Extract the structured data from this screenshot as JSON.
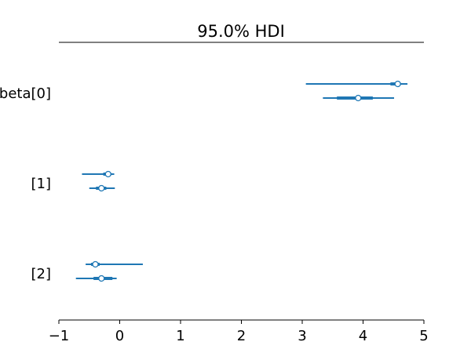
{
  "chart_data": {
    "type": "forest",
    "title": "95.0% HDI",
    "xlim": [
      -1,
      5
    ],
    "x_ticks": [
      -1,
      0,
      1,
      2,
      3,
      4,
      5
    ],
    "x_tick_labels": [
      "−1",
      "0",
      "1",
      "2",
      "3",
      "4",
      "5"
    ],
    "y_labels": [
      "beta[0]",
      "[1]",
      "[2]"
    ],
    "grid": false,
    "line_color": "#1f77b4",
    "series": [
      {
        "group": 0,
        "median": 4.57,
        "hdi_low": 3.06,
        "hdi_high": 4.73,
        "iqr_low": 4.45,
        "iqr_high": 4.62
      },
      {
        "group": 0,
        "median": 3.92,
        "hdi_low": 3.34,
        "hdi_high": 4.51,
        "iqr_low": 3.57,
        "iqr_high": 4.16
      },
      {
        "group": 1,
        "median": -0.19,
        "hdi_low": -0.62,
        "hdi_high": -0.09,
        "iqr_low": -0.27,
        "iqr_high": -0.14
      },
      {
        "group": 1,
        "median": -0.3,
        "hdi_low": -0.5,
        "hdi_high": -0.08,
        "iqr_low": -0.39,
        "iqr_high": -0.22
      },
      {
        "group": 2,
        "median": -0.4,
        "hdi_low": -0.56,
        "hdi_high": 0.38,
        "iqr_low": -0.47,
        "iqr_high": -0.33
      },
      {
        "group": 2,
        "median": -0.3,
        "hdi_low": -0.72,
        "hdi_high": -0.05,
        "iqr_low": -0.43,
        "iqr_high": -0.12
      }
    ]
  }
}
